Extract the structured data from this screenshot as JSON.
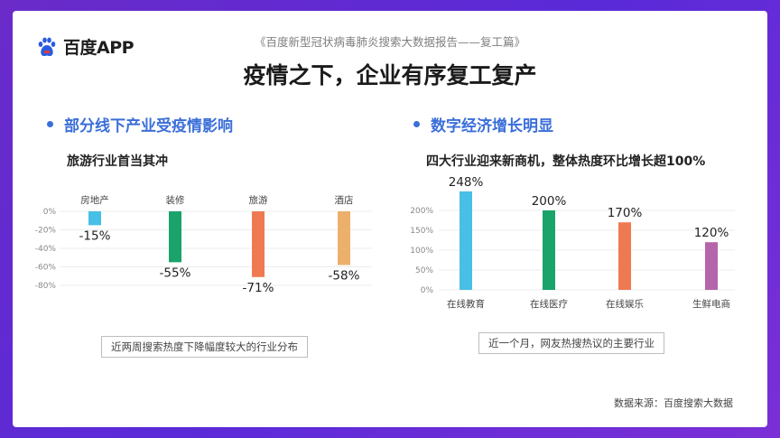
{
  "header": {
    "brand": "百度APP",
    "subtitle": "《百度新型冠状病毒肺炎搜索大数据报告——复工篇》",
    "title": "疫情之下，企业有序复工复产"
  },
  "left": {
    "heading": "部分线下产业受疫情影响",
    "subheading": "旅游行业首当其冲",
    "caption": "近两周搜索热度下降幅度较大的行业分布"
  },
  "right": {
    "heading": "数字经济增长明显",
    "subheading": "四大行业迎来新商机，整体热度环比增长超100%",
    "caption": "近一个月，网友热搜热议的主要行业"
  },
  "footer": {
    "source": "数据来源：百度搜索大数据"
  },
  "chart_data": [
    {
      "type": "bar",
      "categories": [
        "房地产",
        "装修",
        "旅游",
        "酒店"
      ],
      "values": [
        -15,
        -55,
        -71,
        -58
      ],
      "value_labels": [
        "-15%",
        "-55%",
        "-71%",
        "-58%"
      ],
      "yticks": [
        "0%",
        "-20%",
        "-40%",
        "-60%",
        "-80%"
      ],
      "ylim": [
        -80,
        0
      ],
      "colors": [
        "#48bfe6",
        "#1aa36a",
        "#ef7a52",
        "#ecb06c"
      ],
      "grid": true
    },
    {
      "type": "bar",
      "categories": [
        "在线教育",
        "在线医疗",
        "在线娱乐",
        "生鲜电商"
      ],
      "values": [
        248,
        200,
        170,
        120
      ],
      "value_labels": [
        "248%",
        "200%",
        "170%",
        "120%"
      ],
      "yticks": [
        "0%",
        "50%",
        "100%",
        "150%",
        "200%"
      ],
      "ylim": [
        0,
        200
      ],
      "colors": [
        "#48bfe6",
        "#1aa36a",
        "#ef7a52",
        "#b565aa"
      ],
      "grid": true
    }
  ]
}
